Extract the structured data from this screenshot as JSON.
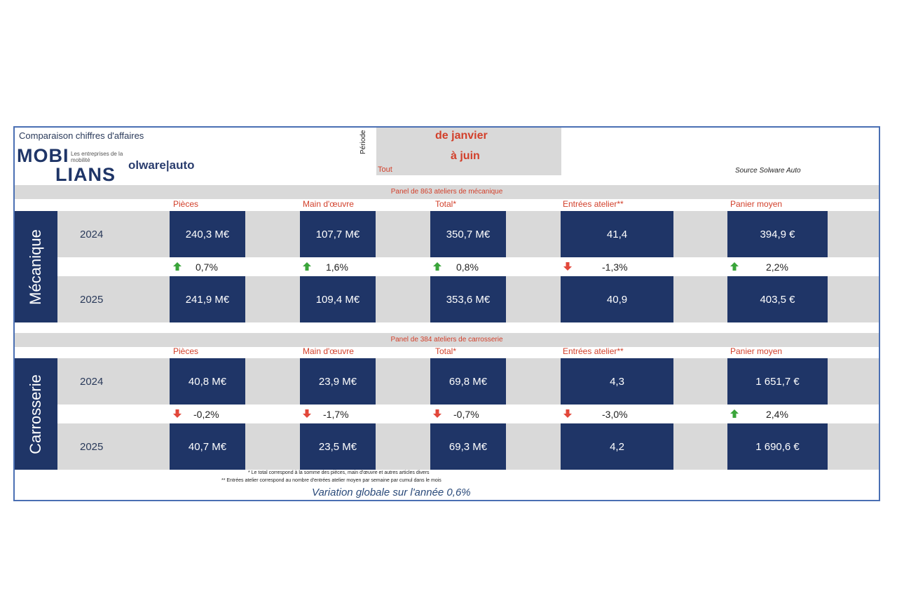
{
  "header": {
    "title": "Comparaison chiffres d'affaires",
    "logo_mobi": "MOBI",
    "logo_lians": "LIANS",
    "logo_tagline": "Les entreprises de la mobilité",
    "logo_solware": "olware|auto",
    "periode_label": "Période",
    "period_line1": "de janvier",
    "period_line2": "à juin",
    "period_filter": "Tout",
    "source": "Source Solware Auto"
  },
  "columns": [
    "Pièces",
    "Main d'œuvre",
    "Total*",
    "Entrées atelier**",
    "Panier moyen"
  ],
  "sections": [
    {
      "panel": "Panel de 863 ateliers de mécanique",
      "label": "Mécanique",
      "year1": "2024",
      "year2": "2025",
      "values2024": [
        "240,3 M€",
        "107,7 M€",
        "350,7 M€",
        "41,4",
        "394,9 €"
      ],
      "changes": [
        "0,7%",
        "1,6%",
        "0,8%",
        "-1,3%",
        "2,2%"
      ],
      "directions": [
        "up",
        "up",
        "up",
        "down",
        "up"
      ],
      "values2025": [
        "241,9 M€",
        "109,4 M€",
        "353,6 M€",
        "40,9",
        "403,5 €"
      ]
    },
    {
      "panel": "Panel de 384 ateliers de carrosserie",
      "label": "Carrosserie",
      "year1": "2024",
      "year2": "2025",
      "values2024": [
        "40,8 M€",
        "23,9 M€",
        "69,8 M€",
        "4,3",
        "1 651,7 €"
      ],
      "changes": [
        "-0,2%",
        "-1,7%",
        "-0,7%",
        "-3,0%",
        "2,4%"
      ],
      "directions": [
        "down",
        "down",
        "down",
        "down",
        "up"
      ],
      "values2025": [
        "40,7 M€",
        "23,5 M€",
        "69,3 M€",
        "4,2",
        "1 690,6 €"
      ]
    }
  ],
  "notes": {
    "note1": "* Le total correspond à la somme des pièces, main d'œuvre et autres articles divers",
    "note2": "** Entrées atelier correspond au nombre d'entrées atelier moyen par semaine par cumul dans le mois"
  },
  "variation": "Variation globale sur l'année 0,6%",
  "colors": {
    "navy": "#1f3567",
    "red": "#d2402b",
    "grey": "#d9d9d9",
    "up": "#3aa53a",
    "down": "#e2473a"
  }
}
